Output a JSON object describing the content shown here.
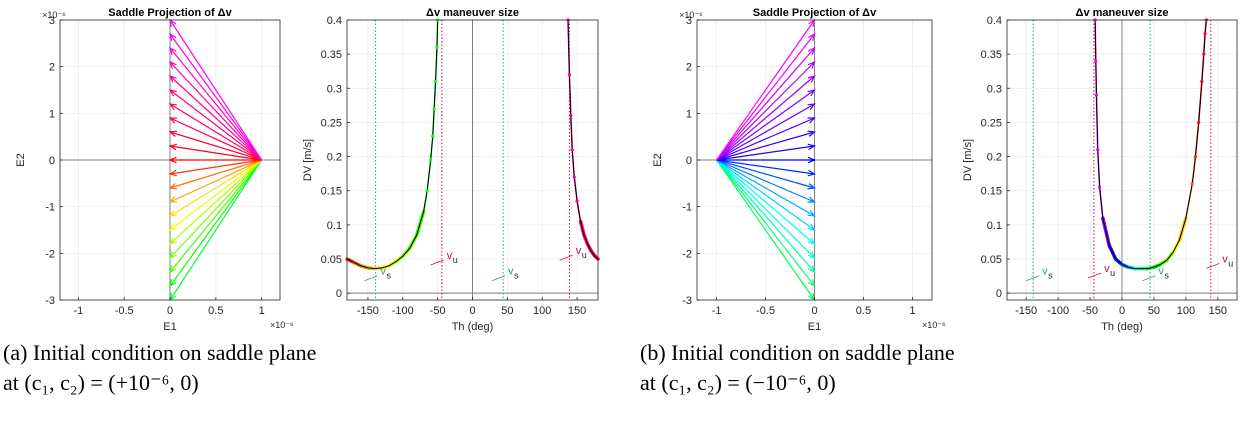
{
  "captions": [
    {
      "line1": "(a) Initial condition on saddle plane",
      "line2": "at (c₁, c₂) = (+10⁻⁶, 0)"
    },
    {
      "line1": "(b) Initial condition on saddle plane",
      "line2": "at (c₁, c₂) = (−10⁻⁶, 0)"
    }
  ],
  "chart_data": [
    {
      "type": "quiver",
      "title": "Saddle Projection of Δv",
      "xlabel": "E1",
      "ylabel": "E2",
      "x_exponent": "×10⁻⁶",
      "y_exponent": "×10⁻⁶",
      "xlim": [
        -1.2,
        1.2
      ],
      "ylim": [
        -3,
        3
      ],
      "xticks": [
        "-1",
        "-0.5",
        "0",
        "0.5",
        "1"
      ],
      "yticks": [
        "-3",
        "-2",
        "-1",
        "0",
        "1",
        "2",
        "3"
      ],
      "grid": true,
      "origin": [
        1,
        0
      ],
      "arrow_tips_x": 0,
      "arrow_tips_y": [
        -3.0,
        -2.7,
        -2.4,
        -2.1,
        -1.8,
        -1.5,
        -1.2,
        -0.9,
        -0.6,
        -0.3,
        0.0,
        0.3,
        0.6,
        0.9,
        1.2,
        1.5,
        1.8,
        2.1,
        2.4,
        2.7,
        3.0
      ],
      "colormap": "hsv: red at E2=0, yellow-green below, magenta above"
    },
    {
      "type": "line",
      "title": "Δv maneuver size",
      "xlabel": "Th (deg)",
      "ylabel": "DV [m/s]",
      "xlim": [
        -180,
        180
      ],
      "ylim": [
        -0.01,
        0.4
      ],
      "xticks": [
        "-150",
        "-100",
        "-50",
        "0",
        "50",
        "100",
        "150"
      ],
      "yticks": [
        "0",
        "0.05",
        "0.1",
        "0.15",
        "0.2",
        "0.25",
        "0.3",
        "0.35",
        "0.4"
      ],
      "grid": true,
      "vlines": [
        {
          "x": -139,
          "style": "dotted",
          "color": "#1aa87a"
        },
        {
          "x": -44,
          "style": "dotted",
          "color": "#cc1144"
        },
        {
          "x": 44,
          "style": "dotted",
          "color": "#1aa87a"
        },
        {
          "x": 139,
          "style": "dotted",
          "color": "#cc1144"
        }
      ],
      "series": [
        {
          "x": [
            -180,
            -170,
            -160,
            -150,
            -140,
            -130,
            -120,
            -110,
            -100,
            -90,
            -80,
            -70,
            -65,
            -60,
            -57,
            -55,
            -53,
            -51,
            -50
          ],
          "y": [
            0.05,
            0.045,
            0.04,
            0.037,
            0.036,
            0.037,
            0.04,
            0.046,
            0.054,
            0.066,
            0.085,
            0.12,
            0.15,
            0.195,
            0.23,
            0.27,
            0.31,
            0.36,
            0.4
          ]
        },
        {
          "x": [
            137,
            139,
            141,
            143,
            146,
            150,
            155,
            160,
            165,
            170,
            175,
            180
          ],
          "y": [
            0.4,
            0.32,
            0.26,
            0.21,
            0.17,
            0.135,
            0.105,
            0.085,
            0.072,
            0.062,
            0.055,
            0.05
          ]
        }
      ],
      "annotations": [
        {
          "text": "v",
          "sub": "s",
          "color": "#1aa87a",
          "x": -132,
          "y": 0.027
        },
        {
          "text": "v",
          "sub": "u",
          "color": "#cc1144",
          "x": -37,
          "y": 0.05
        },
        {
          "text": "v",
          "sub": "s",
          "color": "#1aa87a",
          "x": 51,
          "y": 0.027
        },
        {
          "text": "v",
          "sub": "u",
          "color": "#cc1144",
          "x": 148,
          "y": 0.057
        }
      ]
    },
    {
      "type": "quiver",
      "title": "Saddle Projection of Δv",
      "xlabel": "E1",
      "ylabel": "E2",
      "x_exponent": "×10⁻⁶",
      "y_exponent": "×10⁻⁶",
      "xlim": [
        -1.2,
        1.2
      ],
      "ylim": [
        -3,
        3
      ],
      "xticks": [
        "-1",
        "-0.5",
        "0",
        "0.5",
        "1"
      ],
      "yticks": [
        "-3",
        "-2",
        "-1",
        "0",
        "1",
        "2",
        "3"
      ],
      "grid": true,
      "origin": [
        -1,
        0
      ],
      "arrow_tips_x": 0,
      "arrow_tips_y": [
        -3.0,
        -2.7,
        -2.4,
        -2.1,
        -1.8,
        -1.5,
        -1.2,
        -0.9,
        -0.6,
        -0.3,
        0.0,
        0.3,
        0.6,
        0.9,
        1.2,
        1.5,
        1.8,
        2.1,
        2.4,
        2.7,
        3.0
      ],
      "colormap": "hsv: blue at E2=0, cyan-green below, magenta above"
    },
    {
      "type": "line",
      "title": "Δv maneuver size",
      "xlabel": "Th (deg)",
      "ylabel": "DV [m/s]",
      "xlim": [
        -180,
        180
      ],
      "ylim": [
        -0.01,
        0.4
      ],
      "xticks": [
        "-150",
        "-100",
        "-50",
        "0",
        "50",
        "100",
        "150"
      ],
      "yticks": [
        "0",
        "0.05",
        "0.1",
        "0.15",
        "0.2",
        "0.25",
        "0.3",
        "0.35",
        "0.4"
      ],
      "grid": true,
      "vlines": [
        {
          "x": -139,
          "style": "dotted",
          "color": "#1aa87a"
        },
        {
          "x": -44,
          "style": "dotted",
          "color": "#cc1144"
        },
        {
          "x": 44,
          "style": "dotted",
          "color": "#1aa87a"
        },
        {
          "x": 139,
          "style": "dotted",
          "color": "#cc1144"
        }
      ],
      "series": [
        {
          "x": [
            -42,
            -41,
            -40,
            -38,
            -35,
            -30,
            -20,
            -10,
            0,
            10,
            20,
            30,
            40,
            50,
            60,
            70,
            80,
            90,
            100,
            110,
            115,
            120,
            125,
            128,
            130,
            132
          ],
          "y": [
            0.4,
            0.34,
            0.29,
            0.21,
            0.155,
            0.11,
            0.07,
            0.05,
            0.042,
            0.038,
            0.036,
            0.036,
            0.036,
            0.038,
            0.042,
            0.048,
            0.06,
            0.078,
            0.11,
            0.16,
            0.2,
            0.25,
            0.31,
            0.35,
            0.38,
            0.4
          ]
        }
      ],
      "annotations": [
        {
          "text": "v",
          "sub": "s",
          "color": "#1aa87a",
          "x": -125,
          "y": 0.027
        },
        {
          "text": "v",
          "sub": "u",
          "color": "#cc1144",
          "x": -28,
          "y": 0.031
        },
        {
          "text": "v",
          "sub": "s",
          "color": "#1aa87a",
          "x": 57,
          "y": 0.027
        },
        {
          "text": "v",
          "sub": "u",
          "color": "#cc1144",
          "x": 157,
          "y": 0.045
        }
      ]
    }
  ]
}
